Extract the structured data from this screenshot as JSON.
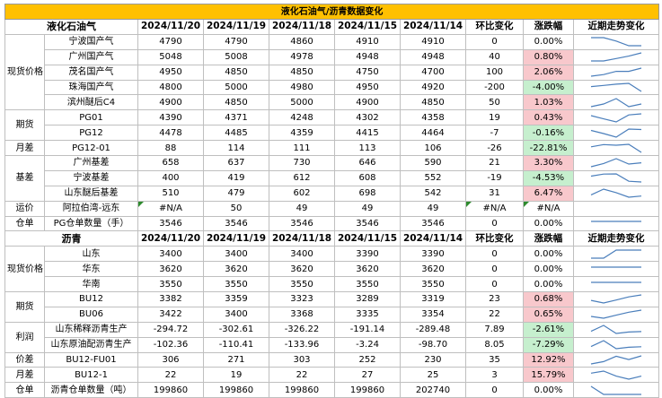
{
  "title": "液化石油气/沥青数据变化",
  "lpg": {
    "section_label": "液化石油气",
    "dates": [
      "2024/11/20",
      "2024/11/19",
      "2024/11/18",
      "2024/11/15",
      "2024/11/14"
    ],
    "change_label": "环比变化",
    "pct_label": "涨跌幅",
    "trend_label": "近期走势变化",
    "groups": [
      {
        "label": "现货价格",
        "rows": [
          {
            "item": "宁波国产气",
            "vals": [
              "4790",
              "4790",
              "4860",
              "4910",
              "4910"
            ],
            "chg": "0",
            "pct": "0.00%",
            "sign": "zero",
            "trend": [
              4910,
              4910,
              4860,
              4790,
              4790
            ]
          },
          {
            "item": "广州国产气",
            "vals": [
              "5048",
              "5008",
              "4978",
              "4948",
              "4948"
            ],
            "chg": "40",
            "pct": "0.80%",
            "sign": "pos",
            "trend": [
              4948,
              4948,
              4978,
              5008,
              5048
            ]
          },
          {
            "item": "茂名国产气",
            "vals": [
              "4950",
              "4850",
              "4850",
              "4750",
              "4700"
            ],
            "chg": "100",
            "pct": "2.06%",
            "sign": "pos",
            "trend": [
              4700,
              4750,
              4850,
              4850,
              4950
            ]
          },
          {
            "item": "珠海国产气",
            "vals": [
              "4800",
              "5000",
              "4980",
              "4950",
              "4920"
            ],
            "chg": "-200",
            "pct": "-4.00%",
            "sign": "neg",
            "trend": [
              4920,
              4950,
              4980,
              5000,
              4800
            ]
          },
          {
            "item": "滨州醚后C4",
            "vals": [
              "4900",
              "4850",
              "5000",
              "4900",
              "4850"
            ],
            "chg": "50",
            "pct": "1.03%",
            "sign": "pos",
            "trend": [
              4850,
              4900,
              5000,
              4850,
              4900
            ]
          }
        ]
      },
      {
        "label": "期货",
        "rows": [
          {
            "item": "PG01",
            "vals": [
              "4390",
              "4371",
              "4248",
              "4302",
              "4358"
            ],
            "chg": "19",
            "pct": "0.43%",
            "sign": "pos",
            "trend": [
              4358,
              4302,
              4248,
              4371,
              4390
            ]
          },
          {
            "item": "PG12",
            "vals": [
              "4478",
              "4485",
              "4359",
              "4415",
              "4464"
            ],
            "chg": "-7",
            "pct": "-0.16%",
            "sign": "neg",
            "trend": [
              4464,
              4415,
              4359,
              4485,
              4478
            ]
          }
        ]
      },
      {
        "label": "月差",
        "rows": [
          {
            "item": "PG12-01",
            "vals": [
              "88",
              "114",
              "111",
              "113",
              "106"
            ],
            "chg": "-26",
            "pct": "-22.81%",
            "sign": "neg",
            "trend": [
              106,
              113,
              111,
              114,
              88
            ]
          }
        ]
      },
      {
        "label": "基差",
        "rows": [
          {
            "item": "广州基差",
            "vals": [
              "658",
              "637",
              "730",
              "646",
              "590"
            ],
            "chg": "21",
            "pct": "3.30%",
            "sign": "pos",
            "trend": [
              590,
              646,
              730,
              637,
              658
            ]
          },
          {
            "item": "宁波基差",
            "vals": [
              "400",
              "419",
              "612",
              "608",
              "552"
            ],
            "chg": "-19",
            "pct": "-4.53%",
            "sign": "neg",
            "trend": [
              552,
              608,
              612,
              419,
              400
            ]
          },
          {
            "item": "山东醚后基差",
            "vals": [
              "510",
              "479",
              "602",
              "698",
              "542"
            ],
            "chg": "31",
            "pct": "6.47%",
            "sign": "pos",
            "trend": [
              542,
              698,
              602,
              479,
              510
            ]
          }
        ]
      },
      {
        "label": "运价",
        "rows": [
          {
            "item": "阿拉伯湾-远东",
            "vals": [
              "#N/A",
              "50",
              "49",
              "49",
              "49"
            ],
            "chg": "#N/A",
            "pct": "#N/A",
            "sign": "zero",
            "err": true,
            "trend": []
          }
        ]
      },
      {
        "label": "仓单",
        "rows": [
          {
            "item": "PG仓单数量（手）",
            "vals": [
              "3546",
              "3546",
              "3546",
              "3546",
              "3546"
            ],
            "chg": "0",
            "pct": "0.00%",
            "sign": "zero",
            "trend": [
              3546,
              3546,
              3546,
              3546,
              3546
            ]
          }
        ]
      }
    ]
  },
  "asphalt": {
    "section_label": "沥青",
    "dates": [
      "2024/11/20",
      "2024/11/19",
      "2024/11/18",
      "2024/11/15",
      "2024/11/14"
    ],
    "change_label": "环比变化",
    "pct_label": "涨跌幅",
    "trend_label": "近期走势变化",
    "groups": [
      {
        "label": "现货价格",
        "rows": [
          {
            "item": "山东",
            "vals": [
              "3400",
              "3400",
              "3400",
              "3390",
              "3390"
            ],
            "chg": "0",
            "pct": "0.00%",
            "sign": "zero",
            "trend": [
              3390,
              3390,
              3400,
              3400,
              3400
            ]
          },
          {
            "item": "华东",
            "vals": [
              "3620",
              "3620",
              "3620",
              "3620",
              "3620"
            ],
            "chg": "0",
            "pct": "0.00%",
            "sign": "zero",
            "trend": [
              3620,
              3620,
              3620,
              3620,
              3620
            ]
          },
          {
            "item": "华南",
            "vals": [
              "3550",
              "3550",
              "3550",
              "3550",
              "3550"
            ],
            "chg": "0",
            "pct": "0.00%",
            "sign": "zero",
            "trend": [
              3550,
              3550,
              3550,
              3550,
              3550
            ]
          }
        ]
      },
      {
        "label": "期货",
        "rows": [
          {
            "item": "BU12",
            "vals": [
              "3382",
              "3359",
              "3323",
              "3289",
              "3319"
            ],
            "chg": "23",
            "pct": "0.68%",
            "sign": "pos",
            "trend": [
              3319,
              3289,
              3323,
              3359,
              3382
            ]
          },
          {
            "item": "BU06",
            "vals": [
              "3422",
              "3400",
              "3368",
              "3335",
              "3354"
            ],
            "chg": "22",
            "pct": "0.65%",
            "sign": "pos",
            "trend": [
              3354,
              3335,
              3368,
              3400,
              3422
            ]
          }
        ]
      },
      {
        "label": "利润",
        "rows": [
          {
            "item": "山东稀释沥青生产",
            "vals": [
              "-294.72",
              "-302.61",
              "-326.22",
              "-191.14",
              "-289.48"
            ],
            "chg": "7.89",
            "pct": "-2.61%",
            "sign": "neg",
            "trend": [
              -289.48,
              -191.14,
              -326.22,
              -302.61,
              -294.72
            ]
          },
          {
            "item": "山东原油配沥青生产",
            "vals": [
              "-102.36",
              "-110.41",
              "-133.96",
              "-3.24",
              "-98.70"
            ],
            "chg": "8.05",
            "pct": "-7.29%",
            "sign": "neg",
            "trend": [
              -98.7,
              -3.24,
              -133.96,
              -110.41,
              -102.36
            ]
          }
        ]
      },
      {
        "label": "价差",
        "rows": [
          {
            "item": "BU12-FU01",
            "vals": [
              "306",
              "271",
              "303",
              "252",
              "230"
            ],
            "chg": "35",
            "pct": "12.92%",
            "sign": "pos",
            "trend": [
              230,
              252,
              303,
              271,
              306
            ]
          }
        ]
      },
      {
        "label": "月差",
        "rows": [
          {
            "item": "BU12-1",
            "vals": [
              "22",
              "19",
              "22",
              "27",
              "25"
            ],
            "chg": "3",
            "pct": "15.79%",
            "sign": "pos",
            "trend": [
              25,
              27,
              22,
              19,
              22
            ]
          }
        ]
      },
      {
        "label": "仓单",
        "rows": [
          {
            "item": "沥青仓单数量（吨）",
            "vals": [
              "199860",
              "199860",
              "199860",
              "199860",
              "202740"
            ],
            "chg": "0",
            "pct": "0.00%",
            "sign": "zero",
            "trend": [
              202740,
              199860,
              199860,
              199860,
              199860
            ]
          }
        ]
      }
    ]
  }
}
